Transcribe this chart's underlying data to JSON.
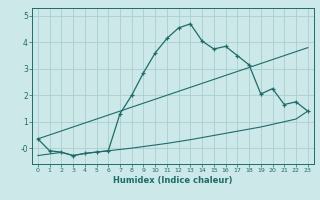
{
  "xlabel": "Humidex (Indice chaleur)",
  "background_color": "#cce8e8",
  "grid_color": "#aacfcf",
  "line_color": "#1e6b6b",
  "x_humidex": [
    0,
    1,
    2,
    3,
    4,
    5,
    6,
    7,
    8,
    9,
    10,
    11,
    12,
    13,
    14,
    15,
    16,
    17,
    18,
    19,
    20,
    21,
    22,
    23
  ],
  "y_main": [
    0.35,
    -0.1,
    -0.15,
    -0.28,
    -0.2,
    -0.15,
    -0.1,
    1.3,
    2.0,
    2.85,
    3.6,
    4.15,
    4.55,
    4.7,
    4.05,
    3.75,
    3.85,
    3.5,
    3.15,
    2.05,
    2.25,
    1.65,
    1.75,
    1.4
  ],
  "y_upper": [
    0.35,
    0.5,
    0.65,
    0.8,
    0.95,
    1.1,
    1.25,
    1.4,
    1.55,
    1.7,
    1.85,
    2.0,
    2.15,
    2.3,
    2.45,
    2.6,
    2.75,
    2.9,
    3.05,
    3.2,
    3.35,
    3.5,
    3.65,
    3.8
  ],
  "y_lower": [
    -0.28,
    -0.22,
    -0.16,
    -0.28,
    -0.2,
    -0.15,
    -0.1,
    -0.05,
    0.0,
    0.06,
    0.12,
    0.18,
    0.25,
    0.32,
    0.4,
    0.48,
    0.56,
    0.64,
    0.72,
    0.8,
    0.9,
    1.0,
    1.1,
    1.4
  ],
  "ylim": [
    -0.6,
    5.3
  ],
  "xlim": [
    -0.5,
    23.5
  ],
  "yticks": [
    0,
    1,
    2,
    3,
    4,
    5
  ],
  "ytick_labels": [
    "-0",
    "1",
    "2",
    "3",
    "4",
    "5"
  ],
  "xticks": [
    0,
    1,
    2,
    3,
    4,
    5,
    6,
    7,
    8,
    9,
    10,
    11,
    12,
    13,
    14,
    15,
    16,
    17,
    18,
    19,
    20,
    21,
    22,
    23
  ]
}
